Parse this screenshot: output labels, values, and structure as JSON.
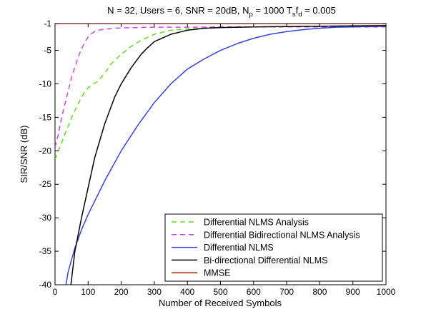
{
  "chart_data": {
    "type": "line",
    "title": {
      "part1": "N = 32, Users = 6, SNR = 20dB, N",
      "sub1": "p",
      "part2": " = 1000 T",
      "sub2": "s",
      "part3": "f",
      "sub3": "d",
      "part4": " = 0.005"
    },
    "xlabel": "Number of Received Symbols",
    "ylabel": "SIR/SNR (dB)",
    "xlim": [
      0,
      1000
    ],
    "ylim": [
      -40,
      -1
    ],
    "xticks": [
      "0",
      "100",
      "200",
      "300",
      "400",
      "500",
      "600",
      "700",
      "800",
      "900",
      "1000"
    ],
    "yticks": [
      "-1",
      "-5",
      "-10",
      "-15",
      "-20",
      "-25",
      "-30",
      "-35",
      "-40"
    ],
    "grid": "off",
    "legend_position": "bottom-right",
    "series": [
      {
        "name": "Differential NLMS Analysis",
        "color": "#66dd22",
        "dash": "dashed",
        "x": [
          0,
          10,
          20,
          30,
          40,
          50,
          60,
          70,
          80,
          90,
          100,
          110,
          120,
          130,
          150,
          170,
          200,
          230,
          260,
          300,
          350,
          400,
          450,
          500,
          600,
          700,
          800,
          900,
          1000
        ],
        "y": [
          -21.3,
          -20.0,
          -18.8,
          -17.5,
          -16.3,
          -15.0,
          -14.0,
          -13.0,
          -12.0,
          -11.2,
          -10.6,
          -10.2,
          -9.9,
          -9.6,
          -8.4,
          -7.0,
          -5.6,
          -4.4,
          -3.5,
          -2.6,
          -2.0,
          -1.8,
          -1.7,
          -1.6,
          -1.5,
          -1.5,
          -1.45,
          -1.4,
          -1.35
        ]
      },
      {
        "name": "Differential Bidirectional NLMS Analysis",
        "color": "#cc44ee",
        "dash": "dashed",
        "x": [
          0,
          10,
          20,
          30,
          40,
          50,
          60,
          70,
          80,
          90,
          100,
          110,
          120,
          140,
          160,
          180,
          200,
          250,
          300,
          400,
          500,
          600,
          700,
          800,
          900,
          1000
        ],
        "y": [
          -19.5,
          -17.5,
          -15.0,
          -13.0,
          -11.0,
          -9.0,
          -7.5,
          -6.0,
          -4.8,
          -3.8,
          -3.0,
          -2.5,
          -2.2,
          -1.9,
          -1.8,
          -1.7,
          -1.65,
          -1.6,
          -1.55,
          -1.55,
          -1.5,
          -1.5,
          -1.5,
          -1.5,
          -1.5,
          -1.5
        ]
      },
      {
        "name": "Differential NLMS",
        "color": "#3344dd",
        "dash": "solid",
        "x": [
          33,
          40,
          60,
          80,
          100,
          150,
          200,
          250,
          300,
          350,
          400,
          450,
          500,
          550,
          600,
          650,
          700,
          750,
          800,
          850,
          900,
          950,
          1000
        ],
        "y": [
          -40,
          -38.0,
          -34.5,
          -31.8,
          -29.5,
          -24.5,
          -20.0,
          -16.2,
          -12.8,
          -10.0,
          -7.8,
          -6.3,
          -5.0,
          -4.0,
          -3.2,
          -2.6,
          -2.2,
          -1.9,
          -1.7,
          -1.55,
          -1.5,
          -1.45,
          -1.4
        ]
      },
      {
        "name": "Bi-directional Differential NLMS",
        "color": "#000000",
        "dash": "solid",
        "x": [
          48,
          60,
          80,
          100,
          120,
          150,
          180,
          200,
          230,
          260,
          280,
          300,
          350,
          400,
          450,
          500,
          600,
          700,
          800,
          900,
          1000
        ],
        "y": [
          -40,
          -35.0,
          -30.0,
          -25.5,
          -21.0,
          -16.0,
          -12.0,
          -10.0,
          -7.6,
          -5.6,
          -4.6,
          -3.7,
          -2.6,
          -2.0,
          -1.7,
          -1.6,
          -1.5,
          -1.45,
          -1.4,
          -1.35,
          -1.3
        ]
      },
      {
        "name": "MMSE",
        "color": "#aa2211",
        "dash": "solid",
        "x": [
          0,
          1000
        ],
        "y": [
          -1.0,
          -1.0
        ]
      }
    ]
  }
}
